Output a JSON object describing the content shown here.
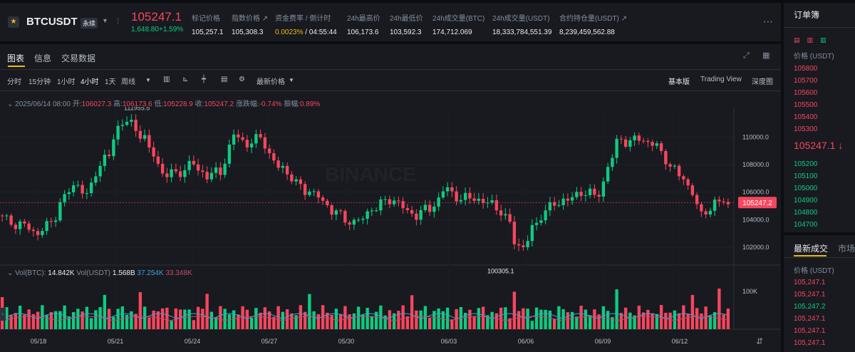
{
  "header": {
    "symbol": "BTCUSDT",
    "contract_type": "永续",
    "last_price": "105247.1",
    "change": "1,648.80",
    "change_pct": "+1.59%",
    "stats": [
      {
        "label": "标记价格",
        "value": "105,257.1"
      },
      {
        "label": "指数价格 ↗",
        "value": "105,308.3"
      },
      {
        "label": "资金费率 / 倒计时",
        "value_a": "0.0023%",
        "value_b": " / 04:55:44"
      },
      {
        "label": "24h最高价",
        "value": "106,173.6"
      },
      {
        "label": "24h最低价",
        "value": "103,592.3"
      },
      {
        "label": "24h成交量(BTC)",
        "value": "174,712.069"
      },
      {
        "label": "24h成交量(USDT)",
        "value": "18,333,784,551.39"
      },
      {
        "label": "合约持仓量(USDT) ↗",
        "value": "8,239,459,562.88"
      }
    ],
    "more_icon": "more-dots-icon"
  },
  "tabs": [
    "图表",
    "信息",
    "交易数据"
  ],
  "toolbar": {
    "intervals": [
      "分时",
      "15分钟",
      "1小时",
      "4小时",
      "1天",
      "周线"
    ],
    "active_interval": "4小时",
    "price_type": "最新价格",
    "views": [
      "基本版",
      "Trading View",
      "深度图"
    ],
    "active_view": "基本版"
  },
  "ohlc": {
    "date": "2025/06/14 08:00",
    "open_label": "开:",
    "open": "106027.3",
    "high_label": "高:",
    "high": "106173.6",
    "low_label": "低:",
    "low": "105228.9",
    "close_label": "收:",
    "close": "105247.2",
    "chg_label": "涨跌幅:",
    "chg": "-0.74%",
    "amp_label": "振幅:",
    "amp": "0.89%"
  },
  "volume_legend": {
    "label_btc": "Vol(BTC):",
    "btc": "14.842K",
    "label_usdt": "Vol(USDT)",
    "usdt": "1.568B",
    "ma1": "37.254K",
    "ma2": "33.348K"
  },
  "chart_data": {
    "type": "candlestick",
    "y_ticks": [
      "110000.0",
      "108000.0",
      "106000.0",
      "104000.0",
      "102000.0"
    ],
    "ylim": [
      100700,
      112200
    ],
    "x_ticks": [
      "05/18",
      "05/21",
      "05/24",
      "05/27",
      "05/30",
      "06/03",
      "06/06",
      "06/09",
      "06/12"
    ],
    "current_price_label": "105247.2",
    "high_marker": "111955.5",
    "low_marker": "100305.1",
    "volume_tick": "100K",
    "watermark": "BINANCE"
  },
  "orderbook": {
    "title": "订单簿",
    "price_header": "价格 (USDT)",
    "asks": [
      "105800",
      "105700",
      "105600",
      "105500",
      "105400",
      "105300"
    ],
    "mid": "105247.1",
    "bids": [
      "105200",
      "105100",
      "105000",
      "104900",
      "104800",
      "104700"
    ]
  },
  "trades": {
    "tab_latest": "最新成交",
    "tab_market": "市场",
    "price_header": "价格 (USDT)",
    "rows": [
      {
        "price": "105,247.1",
        "side": "sell"
      },
      {
        "price": "105,247.1",
        "side": "sell"
      },
      {
        "price": "105,247.2",
        "side": "buy"
      },
      {
        "price": "105,247.1",
        "side": "sell"
      },
      {
        "price": "105,247.1",
        "side": "sell"
      },
      {
        "price": "105,247.1",
        "side": "sell"
      }
    ]
  },
  "colors": {
    "up": "#0ecb81",
    "down": "#f6465d",
    "accent": "#f0b90b",
    "ma1": "#3fa0d9",
    "ma2": "#c94a6d"
  }
}
